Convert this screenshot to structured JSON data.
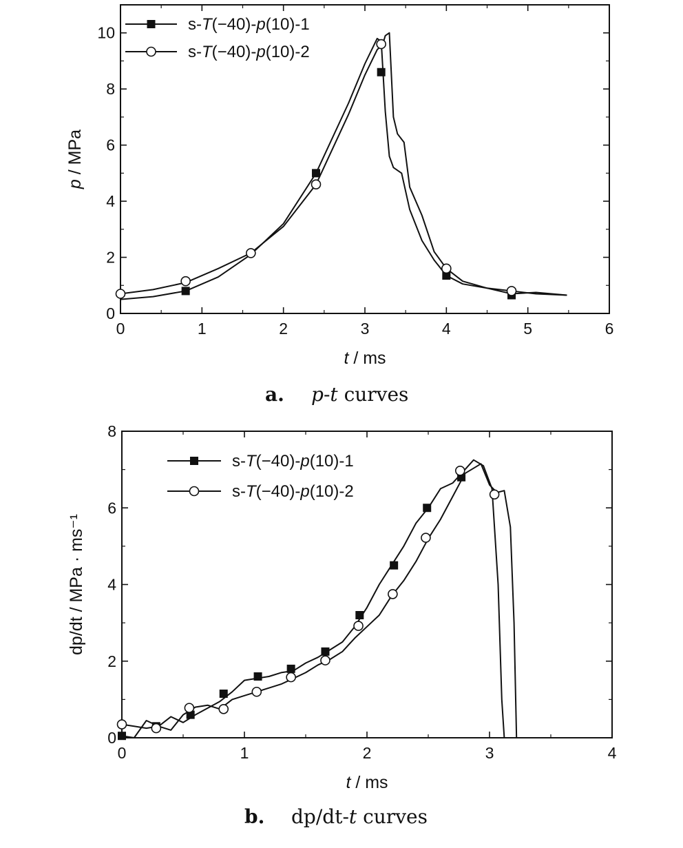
{
  "chart_data": [
    {
      "type": "line",
      "caption_letter": "a.",
      "caption_text": "p-t curves",
      "xlabel": "t / ms",
      "ylabel": "p / MPa",
      "xlim": [
        0,
        6
      ],
      "ylim": [
        0,
        11
      ],
      "xticks": [
        "0",
        "1",
        "2",
        "3",
        "4",
        "5",
        "6"
      ],
      "yticks": [
        "0",
        "2",
        "4",
        "6",
        "8",
        "10"
      ],
      "legend_position": "top-left",
      "series": [
        {
          "name": "s-T(−40)-p(10)-1",
          "marker": "filled-square",
          "x": [
            0,
            0.4,
            0.8,
            1.2,
            1.6,
            2.0,
            2.4,
            2.8,
            3.0,
            3.15,
            3.2,
            3.25,
            3.3,
            3.35,
            3.45,
            3.55,
            3.7,
            3.85,
            4.0,
            4.2,
            4.5,
            4.8,
            5.1,
            5.48
          ],
          "y": [
            0.5,
            0.6,
            0.8,
            1.3,
            2.1,
            3.2,
            5.0,
            7.5,
            8.9,
            9.8,
            9.7,
            7.2,
            5.6,
            5.2,
            5.0,
            3.7,
            2.6,
            1.9,
            1.35,
            1.05,
            0.9,
            0.7,
            0.75,
            0.65
          ],
          "marker_x": [
            0.8,
            2.4,
            3.2,
            4.0,
            4.8
          ],
          "marker_y": [
            0.8,
            5.0,
            8.6,
            1.35,
            0.65
          ]
        },
        {
          "name": "s-T(−40)-p(10)-2",
          "marker": "open-circle",
          "x": [
            0,
            0.4,
            0.8,
            1.2,
            1.6,
            2.0,
            2.4,
            2.8,
            3.0,
            3.15,
            3.22,
            3.25,
            3.3,
            3.35,
            3.4,
            3.48,
            3.55,
            3.7,
            3.85,
            4.0,
            4.2,
            4.5,
            4.8,
            5.1,
            5.48
          ],
          "y": [
            0.7,
            0.85,
            1.1,
            1.6,
            2.15,
            3.1,
            4.6,
            7.1,
            8.5,
            9.4,
            9.6,
            9.9,
            10.0,
            7.0,
            6.4,
            6.1,
            4.5,
            3.5,
            2.2,
            1.6,
            1.15,
            0.9,
            0.8,
            0.7,
            0.65
          ],
          "marker_x": [
            0,
            0.8,
            1.6,
            2.4,
            3.2,
            4.0,
            4.8
          ],
          "marker_y": [
            0.7,
            1.15,
            2.15,
            4.6,
            9.6,
            1.6,
            0.8
          ]
        }
      ]
    },
    {
      "type": "line",
      "caption_letter": "b.",
      "caption_text": "dp/dt-t curves",
      "xlabel": "t / ms",
      "ylabel": "dp/dt / MPa · ms⁻¹",
      "xlim": [
        0,
        4
      ],
      "ylim": [
        0,
        8
      ],
      "xticks": [
        "0",
        "1",
        "2",
        "3",
        "4"
      ],
      "yticks": [
        "0",
        "2",
        "4",
        "6",
        "8"
      ],
      "legend_position": "top-left",
      "series": [
        {
          "name": "s-T(−40)-p(10)-1",
          "marker": "filled-square",
          "x": [
            0,
            0.1,
            0.2,
            0.3,
            0.4,
            0.5,
            0.6,
            0.8,
            0.9,
            1.0,
            1.1,
            1.2,
            1.3,
            1.4,
            1.5,
            1.6,
            1.7,
            1.8,
            1.9,
            2.0,
            2.1,
            2.2,
            2.3,
            2.4,
            2.5,
            2.6,
            2.7,
            2.8,
            2.87,
            2.95,
            3.02,
            3.07,
            3.1,
            3.12
          ],
          "y": [
            0.05,
            0.0,
            0.45,
            0.3,
            0.55,
            0.4,
            0.6,
            0.95,
            1.2,
            1.5,
            1.55,
            1.6,
            1.7,
            1.75,
            1.95,
            2.1,
            2.3,
            2.5,
            2.9,
            3.4,
            4.0,
            4.5,
            5.0,
            5.6,
            6.0,
            6.5,
            6.65,
            7.0,
            7.25,
            7.1,
            6.5,
            4.0,
            1.0,
            0.0
          ],
          "marker_x": [
            0,
            0.28,
            0.56,
            0.83,
            1.11,
            1.38,
            1.66,
            1.94,
            2.22,
            2.49,
            2.77
          ],
          "marker_y": [
            0.05,
            0.3,
            0.6,
            1.15,
            1.6,
            1.8,
            2.25,
            3.2,
            4.5,
            6.0,
            6.8
          ]
        },
        {
          "name": "s-T(−40)-p(10)-2",
          "marker": "open-circle",
          "x": [
            0,
            0.1,
            0.2,
            0.3,
            0.4,
            0.5,
            0.6,
            0.7,
            0.8,
            0.9,
            1.0,
            1.1,
            1.2,
            1.3,
            1.4,
            1.5,
            1.6,
            1.7,
            1.8,
            1.9,
            2.0,
            2.1,
            2.2,
            2.3,
            2.4,
            2.5,
            2.6,
            2.7,
            2.8,
            2.93,
            3.0,
            3.06,
            3.12,
            3.17,
            3.2,
            3.22
          ],
          "y": [
            0.35,
            0.3,
            0.25,
            0.3,
            0.2,
            0.6,
            0.8,
            0.85,
            0.75,
            1.0,
            1.1,
            1.2,
            1.3,
            1.4,
            1.55,
            1.7,
            1.9,
            2.05,
            2.25,
            2.6,
            2.9,
            3.2,
            3.7,
            4.1,
            4.6,
            5.2,
            5.7,
            6.3,
            6.9,
            7.15,
            6.6,
            6.4,
            6.45,
            5.5,
            3.0,
            0.0
          ],
          "marker_x": [
            0,
            0.28,
            0.55,
            0.83,
            1.1,
            1.38,
            1.66,
            1.93,
            2.21,
            2.48,
            2.76,
            3.04
          ],
          "marker_y": [
            0.35,
            0.25,
            0.78,
            0.75,
            1.2,
            1.58,
            2.02,
            2.92,
            3.75,
            5.22,
            6.97,
            6.35
          ]
        }
      ]
    }
  ]
}
